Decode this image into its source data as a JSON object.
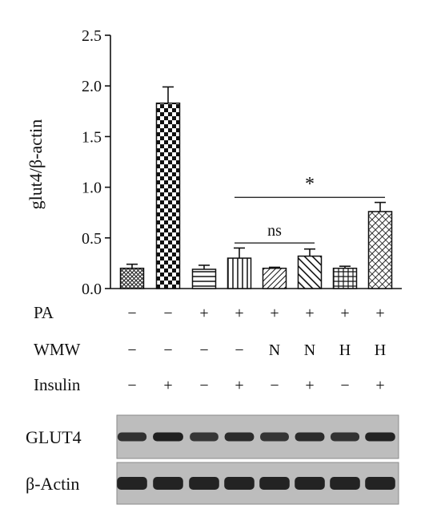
{
  "chart_data": {
    "type": "bar",
    "ylabel": "glut4/β-actin",
    "yticks": [
      "0.0",
      "0.5",
      "1.0",
      "1.5",
      "2.0",
      "2.5"
    ],
    "ylim": [
      0,
      2.5
    ],
    "values": [
      0.2,
      1.83,
      0.19,
      0.3,
      0.2,
      0.32,
      0.2,
      0.76
    ],
    "errors": [
      0.04,
      0.16,
      0.04,
      0.1,
      0.01,
      0.07,
      0.02,
      0.09
    ],
    "patterns": [
      "crosshatch",
      "checker",
      "hlines",
      "vlines",
      "diag",
      "diag-thick",
      "grid",
      "diag-cross"
    ],
    "annotations": [
      {
        "text": "ns",
        "from": 3,
        "to": 5,
        "y": 0.45
      },
      {
        "text": "*",
        "from": 3,
        "to": 7,
        "y": 0.9
      }
    ]
  },
  "conditions": [
    {
      "label": "PA",
      "values": [
        "−",
        "−",
        "+",
        "+",
        "+",
        "+",
        "+",
        "+"
      ]
    },
    {
      "label": "WMW",
      "values": [
        "−",
        "−",
        "−",
        "−",
        "N",
        "N",
        "H",
        "H"
      ]
    },
    {
      "label": "Insulin",
      "values": [
        "−",
        "+",
        "−",
        "+",
        "−",
        "+",
        "−",
        "+"
      ]
    }
  ],
  "blots": [
    {
      "label": "GLUT4",
      "intensity": [
        0.78,
        0.98,
        0.72,
        0.85,
        0.74,
        0.86,
        0.76,
        0.95
      ]
    },
    {
      "label": "β-Actin",
      "intensity": [
        0.95,
        0.95,
        0.95,
        0.95,
        0.95,
        0.95,
        0.95,
        0.95
      ]
    }
  ]
}
